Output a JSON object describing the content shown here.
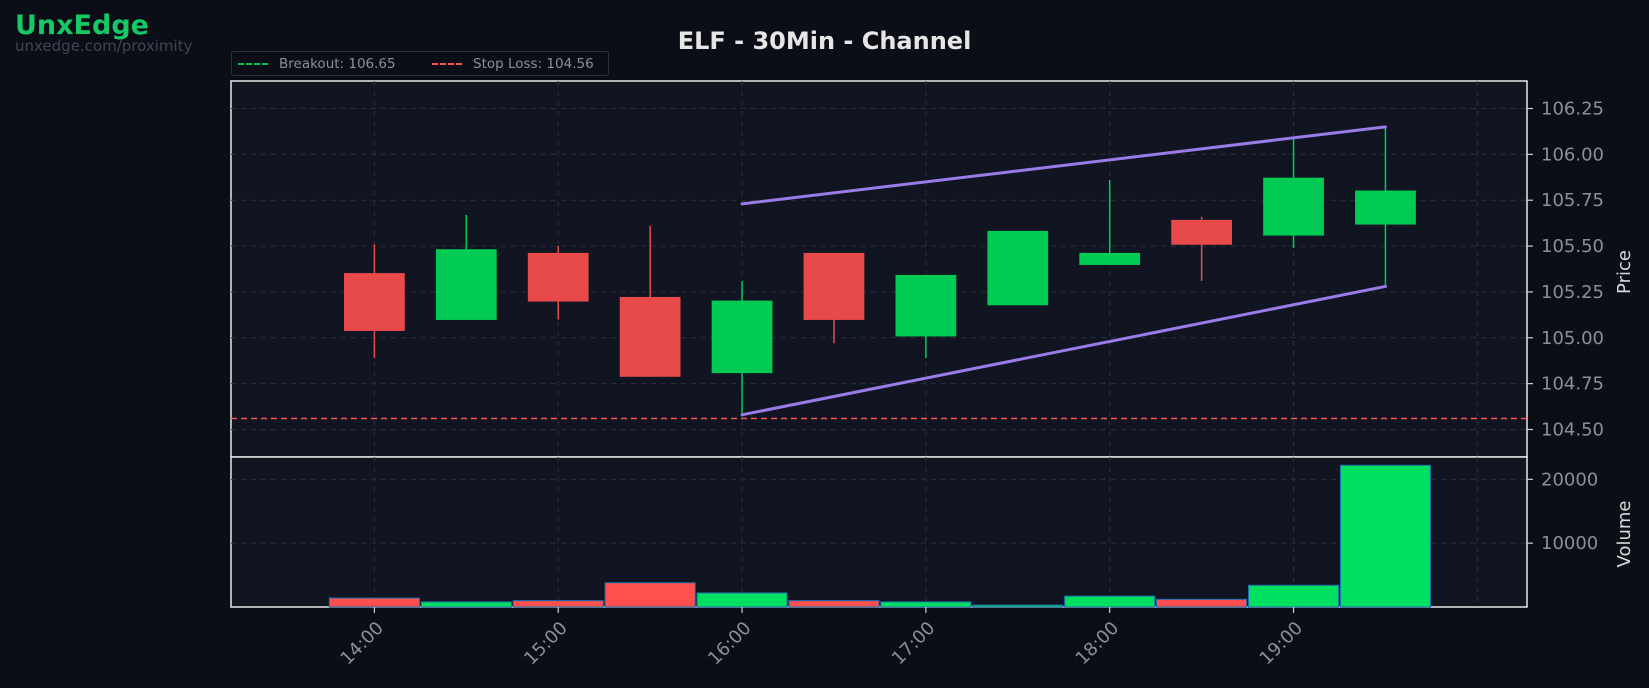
{
  "brand": {
    "name": "UnxEdge",
    "url": "unxedge.com/proximity"
  },
  "chart_data": {
    "type": "candlestick",
    "title": "ELF - 30Min - Channel",
    "ylabel": "Price",
    "volume_label": "Volume",
    "price_ylim": [
      104.35,
      106.4
    ],
    "volume_ylim": [
      0,
      23500
    ],
    "xlim": [
      13.22,
      20.27
    ],
    "x_ticks": [
      {
        "label": "14:00",
        "x": 14.0
      },
      {
        "label": "15:00",
        "x": 15.0
      },
      {
        "label": "16:00",
        "x": 16.0
      },
      {
        "label": "17:00",
        "x": 17.0
      },
      {
        "label": "18:00",
        "x": 18.0
      },
      {
        "label": "19:00",
        "x": 19.0
      }
    ],
    "price_ticks": [
      "104.50",
      "104.75",
      "105.00",
      "105.25",
      "105.50",
      "105.75",
      "106.00",
      "106.25"
    ],
    "volume_ticks": [
      "10000",
      "20000"
    ],
    "candles": [
      {
        "time": "14:00",
        "x": 14.0,
        "open": 105.35,
        "high": 105.51,
        "low": 104.89,
        "close": 105.04,
        "volume": 1400
      },
      {
        "time": "14:30",
        "x": 14.5,
        "open": 105.1,
        "high": 105.67,
        "low": 105.1,
        "close": 105.48,
        "volume": 800
      },
      {
        "time": "15:00",
        "x": 15.0,
        "open": 105.46,
        "high": 105.5,
        "low": 105.1,
        "close": 105.2,
        "volume": 1000
      },
      {
        "time": "15:30",
        "x": 15.5,
        "open": 105.22,
        "high": 105.61,
        "low": 104.79,
        "close": 104.79,
        "volume": 3800
      },
      {
        "time": "16:00",
        "x": 16.0,
        "open": 104.81,
        "high": 105.31,
        "low": 104.57,
        "close": 105.2,
        "volume": 2200
      },
      {
        "time": "16:30",
        "x": 16.5,
        "open": 105.46,
        "high": 105.46,
        "low": 104.97,
        "close": 105.1,
        "volume": 1000
      },
      {
        "time": "17:00",
        "x": 17.0,
        "open": 105.01,
        "high": 105.34,
        "low": 104.89,
        "close": 105.34,
        "volume": 800
      },
      {
        "time": "17:30",
        "x": 17.5,
        "open": 105.18,
        "high": 105.58,
        "low": 105.18,
        "close": 105.58,
        "volume": 300
      },
      {
        "time": "18:00",
        "x": 18.0,
        "open": 105.4,
        "high": 105.86,
        "low": 105.4,
        "close": 105.46,
        "volume": 1700
      },
      {
        "time": "18:30",
        "x": 18.5,
        "open": 105.64,
        "high": 105.66,
        "low": 105.31,
        "close": 105.51,
        "volume": 1200
      },
      {
        "time": "19:00",
        "x": 19.0,
        "open": 105.56,
        "high": 106.09,
        "low": 105.49,
        "close": 105.87,
        "volume": 3400
      },
      {
        "time": "19:30",
        "x": 19.5,
        "open": 105.62,
        "high": 106.15,
        "low": 105.28,
        "close": 105.8,
        "volume": 22200
      }
    ],
    "lines": [
      {
        "name": "Breakout",
        "value": 106.65,
        "color": "#00c853",
        "style": "dashed",
        "legend": "Breakout: 106.65"
      },
      {
        "name": "Stop Loss",
        "value": 104.56,
        "color": "#ff5252",
        "style": "dashed",
        "legend": "Stop Loss: 104.56"
      }
    ],
    "channel": {
      "color": "#9a7be8",
      "upper": [
        [
          16.0,
          105.73
        ],
        [
          19.5,
          106.15
        ]
      ],
      "lower": [
        [
          16.0,
          104.58
        ],
        [
          19.5,
          105.28
        ]
      ]
    },
    "colors": {
      "up": "#00cc55",
      "down": "#e84a4a",
      "vol_up": "#00e060",
      "vol_down": "#ff4f4f"
    },
    "grid": true,
    "legend_position": "top-left"
  }
}
